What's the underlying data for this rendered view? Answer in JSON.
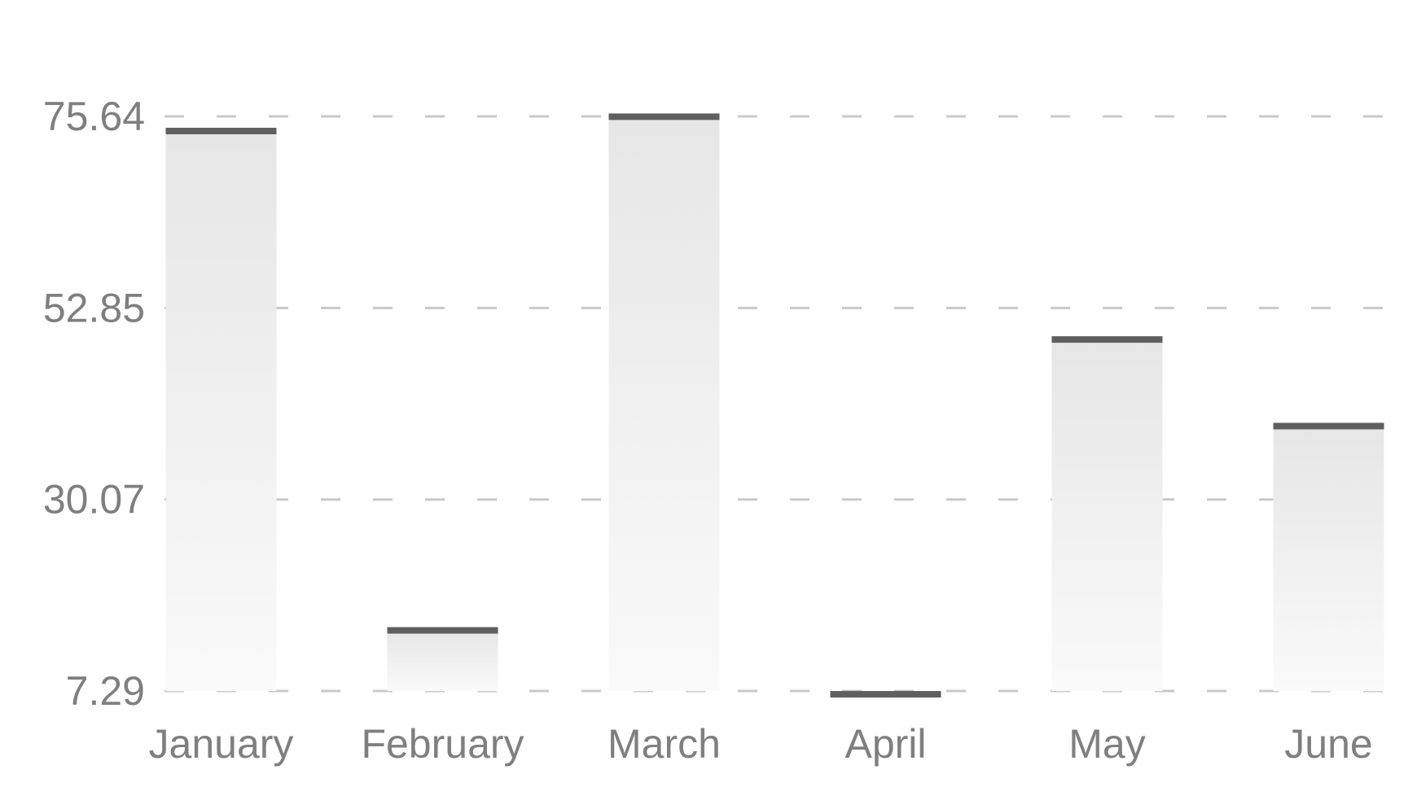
{
  "chart_data": {
    "type": "bar",
    "title": "",
    "xlabel": "",
    "ylabel": "",
    "categories": [
      "January",
      "February",
      "March",
      "April",
      "May",
      "June"
    ],
    "values": [
      73.9,
      14.5,
      75.6,
      6.9,
      49.1,
      38.8
    ],
    "yticks": [
      "7.29",
      "30.07",
      "52.85",
      "75.64"
    ],
    "ylim": [
      7.29,
      75.64
    ],
    "grid": true,
    "legend": "none",
    "colors": {
      "bar_top": "#e6e6e6",
      "bar_bottom": "#fafafa",
      "bar_cap": "#5f5f5f",
      "grid": "#c9c9c9",
      "text": "#7f7f7f"
    }
  }
}
